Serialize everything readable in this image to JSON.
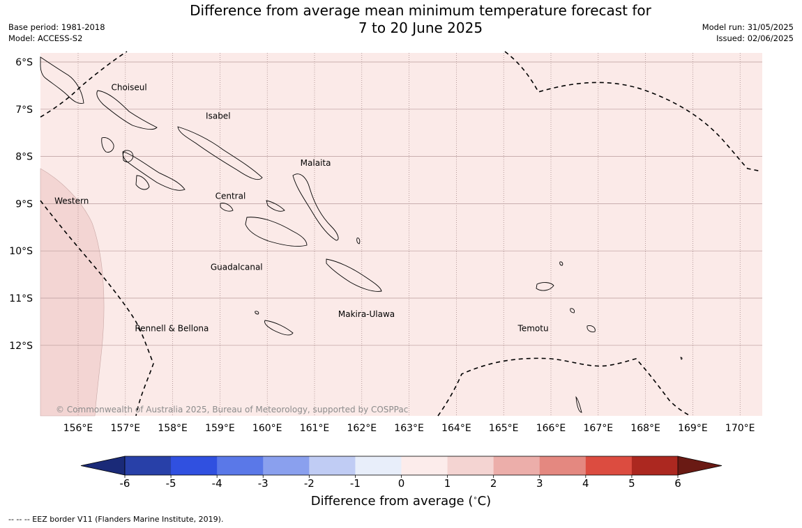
{
  "title": {
    "line1": "Difference from average mean minimum temperature forecast for",
    "line2": "7 to 20 June 2025"
  },
  "meta": {
    "base_period": "Base period: 1981-2018",
    "model": "Model: ACCESS-S2",
    "model_run": "Model run: 31/05/2025",
    "issued": "Issued: 02/06/2025"
  },
  "map": {
    "lon_range": [
      155.2,
      170.5
    ],
    "lat_range": [
      -5.8,
      -13.5
    ],
    "lon_ticks": [
      "156°E",
      "157°E",
      "158°E",
      "159°E",
      "160°E",
      "161°E",
      "162°E",
      "163°E",
      "164°E",
      "165°E",
      "166°E",
      "167°E",
      "168°E",
      "169°E",
      "170°E"
    ],
    "lat_ticks": [
      "6°S",
      "7°S",
      "8°S",
      "9°S",
      "10°S",
      "11°S",
      "12°S"
    ],
    "background_anomaly_color": "#fbeae8",
    "warm_zone_color": "#f3d5d3",
    "copyright": "© Commonwealth of Australia 2025, Bureau of Meteorology, supported by COSPPac"
  },
  "regions": [
    {
      "name": "Choiseul",
      "lon": 156.7,
      "lat": -6.6
    },
    {
      "name": "Isabel",
      "lon": 158.7,
      "lat": -7.2
    },
    {
      "name": "Malaita",
      "lon": 160.7,
      "lat": -8.2
    },
    {
      "name": "Western",
      "lon": 155.5,
      "lat": -9.0
    },
    {
      "name": "Central",
      "lon": 158.9,
      "lat": -8.9
    },
    {
      "name": "Guadalcanal",
      "lon": 158.8,
      "lat": -10.4
    },
    {
      "name": "Makira-Ulawa",
      "lon": 161.5,
      "lat": -11.4
    },
    {
      "name": "Rennell & Bellona",
      "lon": 157.2,
      "lat": -11.7
    },
    {
      "name": "Temotu",
      "lon": 165.3,
      "lat": -11.7
    }
  ],
  "colorbar": {
    "title": "Difference from average (",
    "title_unit": "C)",
    "tick_labels": [
      "-6",
      "-5",
      "-4",
      "-3",
      "-2",
      "-1",
      "0",
      "1",
      "2",
      "3",
      "4",
      "5",
      "6"
    ],
    "colors": [
      "#2840a8",
      "#3050e0",
      "#5a78e8",
      "#8aa0ee",
      "#c0ccf4",
      "#e8eefa",
      "#fceceb",
      "#f4d4d2",
      "#ecaeaa",
      "#e48880",
      "#dc4c40",
      "#ac2820"
    ],
    "under_color": "#1a2a78",
    "over_color": "#6a1a14"
  },
  "footer": "--  --  -- EEZ border V11 (Flanders Marine Institute, 2019)."
}
